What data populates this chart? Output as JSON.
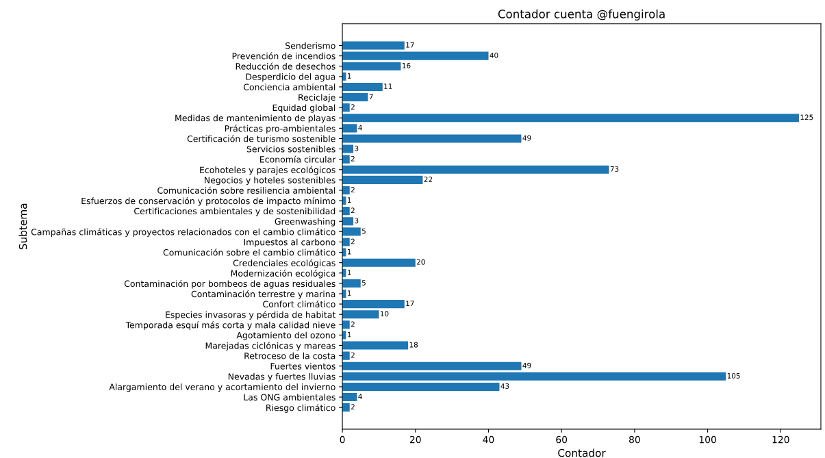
{
  "chart_data": {
    "type": "bar",
    "orientation": "horizontal",
    "title": "Contador cuenta @fuengirola",
    "xlabel": "Contador",
    "ylabel": "Subtema",
    "categories": [
      "Senderismo",
      "Prevención de incendios",
      "Reducción de desechos",
      "Desperdicio del agua",
      "Conciencia ambiental",
      "Reciclaje",
      "Equidad global",
      "Medidas de mantenimiento de playas",
      "Prácticas pro-ambientales",
      "Certificación de turismo sostenible",
      "Servicios sostenibles",
      "Economía circular",
      "Ecohoteles y parajes ecológicos",
      "Negocios y hoteles sostenibles",
      "Comunicación sobre resiliencia ambiental",
      "Esfuerzos de conservación y protocolos de impacto mínimo",
      "Certificaciones ambientales y de sostenibilidad",
      "Greenwashing",
      "Campañas climáticas y proyectos relacionados con el cambio climático",
      "Impuestos al carbono",
      "Comunicación sobre el cambio climático",
      "Credenciales ecológicas",
      "Modernización ecológica",
      "Contaminación por bombeos de aguas residuales",
      "Contaminación terrestre y marina",
      "Confort climático",
      "Especies invasoras y pérdida de habitat",
      "Temporada esquí más corta y mala calidad nieve",
      "Agotamiento del ozono",
      "Marejadas ciclónicas y mareas",
      "Retroceso de la costa",
      "Fuertes vientos",
      "Nevadas y fuertes lluvias",
      "Alargamiento del verano y acortamiento del invierno",
      "Las ONG ambientales",
      "Riesgo climático"
    ],
    "values": [
      17,
      40,
      16,
      1,
      11,
      7,
      2,
      125,
      4,
      49,
      3,
      2,
      73,
      22,
      2,
      1,
      2,
      3,
      5,
      2,
      1,
      20,
      1,
      5,
      1,
      17,
      10,
      2,
      1,
      18,
      2,
      49,
      105,
      43,
      4,
      2
    ],
    "color": "#1f77b4",
    "data_labels": true,
    "xlim": [
      0,
      131
    ],
    "xticks": [
      0,
      20,
      40,
      60,
      80,
      100,
      120
    ],
    "grid": false,
    "legend": false
  }
}
